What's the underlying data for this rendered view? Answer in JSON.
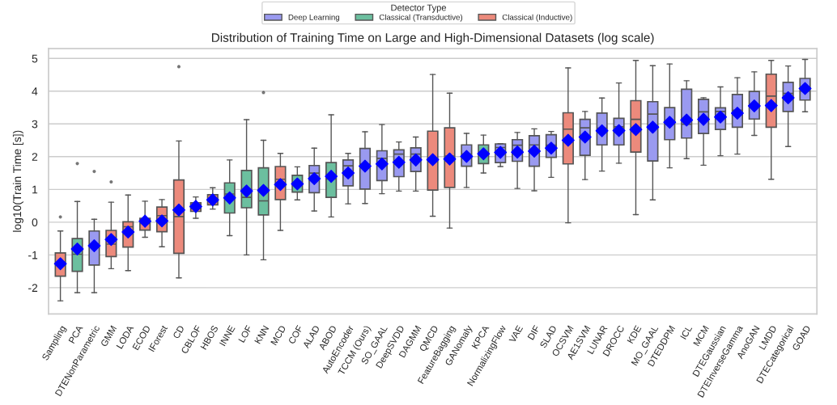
{
  "chart_data": {
    "type": "box",
    "title": "Distribution of Training Time on Large and High-Dimensional Datasets (log scale)",
    "ylabel": "log10(Train Time [s])",
    "legend_title": "Detector Type",
    "legend": "top",
    "grid": "y",
    "ylim": [
      -2.8,
      5.3
    ],
    "yticks": [
      -2,
      -1,
      0,
      1,
      2,
      3,
      4,
      5
    ],
    "categories": [
      "Sampling",
      "PCA",
      "DTENonParametric",
      "GMM",
      "LODA",
      "ECOD",
      "IForest",
      "CD",
      "CBLOF",
      "HBOS",
      "INNE",
      "LOF",
      "KNN",
      "MCD",
      "COF",
      "ALAD",
      "ABOD",
      "AutoEncoder",
      "TCCM (Ours)",
      "SO_GAAL",
      "DeepSVDD",
      "DAGMM",
      "QMCD",
      "FeatureBagging",
      "GANomaly",
      "KPCA",
      "NormalizingFlow",
      "VAE",
      "DIF",
      "SLAD",
      "OCSVM",
      "AE1SVM",
      "LUNAR",
      "DROCC",
      "KDE",
      "MO_GAAL",
      "DTEDDPM",
      "ICL",
      "MCM",
      "DTEGaussian",
      "DTEInverseGamma",
      "AnoGAN",
      "LMDD",
      "DTECategorical",
      "GOAD"
    ],
    "series": [
      {
        "name": "Deep Learning",
        "color": "#9a9af0",
        "boxes": [
          null,
          null,
          {
            "low": -2.15,
            "q1": -1.31,
            "median": -0.75,
            "q3": -0.27,
            "high": 0.09,
            "mean": -0.72,
            "outliers": [
              1.55
            ]
          },
          null,
          null,
          null,
          null,
          null,
          null,
          null,
          null,
          null,
          null,
          null,
          null,
          {
            "low": 0.34,
            "q1": 0.9,
            "median": 1.5,
            "q3": 1.73,
            "high": 2.26,
            "mean": 1.33
          },
          null,
          {
            "low": 0.56,
            "q1": 1.11,
            "median": 1.72,
            "q3": 1.9,
            "high": 2.1,
            "mean": 1.5
          },
          {
            "low": 0.57,
            "q1": 1.01,
            "median": 1.77,
            "q3": 2.25,
            "high": 2.76,
            "mean": 1.71
          },
          {
            "low": 0.87,
            "q1": 1.27,
            "median": 1.95,
            "q3": 2.18,
            "high": 2.98,
            "mean": 1.78
          },
          {
            "low": 0.95,
            "q1": 1.39,
            "median": 2.08,
            "q3": 2.21,
            "high": 2.45,
            "mean": 1.83
          },
          {
            "low": 0.95,
            "q1": 1.55,
            "median": 2.08,
            "q3": 2.27,
            "high": 2.6,
            "mean": 1.9
          },
          null,
          null,
          {
            "low": 1.06,
            "q1": 1.71,
            "median": 2.08,
            "q3": 2.36,
            "high": 2.71,
            "mean": 2.01
          },
          null,
          {
            "low": 1.7,
            "q1": 1.82,
            "median": 2.28,
            "q3": 2.39,
            "high": 2.4,
            "mean": 2.13
          },
          {
            "low": 1.03,
            "q1": 1.86,
            "median": 2.35,
            "q3": 2.52,
            "high": 2.74,
            "mean": 2.14
          },
          {
            "low": 0.96,
            "q1": 1.71,
            "median": 2.36,
            "q3": 2.64,
            "high": 2.85,
            "mean": 2.17
          },
          {
            "low": 1.37,
            "q1": 1.98,
            "median": 2.35,
            "q3": 2.67,
            "high": 2.77,
            "mean": 2.26
          },
          null,
          {
            "low": 1.3,
            "q1": 2.04,
            "median": 2.88,
            "q3": 3.14,
            "high": 3.38,
            "mean": 2.6
          },
          {
            "low": 1.56,
            "q1": 2.36,
            "median": 2.87,
            "q3": 3.33,
            "high": 3.79,
            "mean": 2.79
          },
          {
            "low": 1.8,
            "q1": 2.36,
            "median": 2.91,
            "q3": 3.17,
            "high": 4.25,
            "mean": 2.8
          },
          null,
          {
            "low": 0.68,
            "q1": 1.87,
            "median": 3.3,
            "q3": 3.68,
            "high": 4.78,
            "mean": 2.9
          },
          {
            "low": 1.66,
            "q1": 2.52,
            "median": 3.0,
            "q3": 3.5,
            "high": 4.83,
            "mean": 3.05
          },
          {
            "low": 1.94,
            "q1": 2.57,
            "median": 2.99,
            "q3": 4.06,
            "high": 4.32,
            "mean": 3.12
          },
          {
            "low": 1.74,
            "q1": 2.71,
            "median": 3.37,
            "q3": 3.75,
            "high": 3.8,
            "mean": 3.14
          },
          {
            "low": 2.03,
            "q1": 2.83,
            "median": 3.38,
            "q3": 3.49,
            "high": 4.13,
            "mean": 3.21
          },
          {
            "low": 2.08,
            "q1": 2.9,
            "median": 3.42,
            "q3": 3.9,
            "high": 4.41,
            "mean": 3.33
          },
          {
            "low": 2.65,
            "q1": 3.15,
            "median": 3.55,
            "q3": 3.99,
            "high": 4.59,
            "mean": 3.55
          },
          null,
          {
            "low": 2.31,
            "q1": 3.38,
            "median": 3.93,
            "q3": 4.27,
            "high": 4.77,
            "mean": 3.8
          },
          {
            "low": 3.37,
            "q1": 3.73,
            "median": 4.0,
            "q3": 4.39,
            "high": 4.97,
            "mean": 4.08
          }
        ]
      },
      {
        "name": "Classical (Transductive)",
        "color": "#6cbf9f",
        "boxes": [
          null,
          {
            "low": -2.15,
            "q1": -1.5,
            "median": -0.98,
            "q3": -0.5,
            "high": 0.63,
            "mean": -0.82,
            "outliers": [
              1.79
            ]
          },
          null,
          null,
          null,
          null,
          null,
          null,
          null,
          null,
          {
            "low": -0.41,
            "q1": 0.28,
            "median": 0.86,
            "q3": 1.2,
            "high": 1.9,
            "mean": 0.74
          },
          {
            "low": -1.0,
            "q1": 0.44,
            "median": 0.76,
            "q3": 1.58,
            "high": 3.13,
            "mean": 0.95
          },
          {
            "low": -1.15,
            "q1": 0.22,
            "median": 0.65,
            "q3": 1.66,
            "high": 2.5,
            "mean": 0.97,
            "outliers": [
              3.96
            ]
          },
          null,
          {
            "low": 0.68,
            "q1": 0.92,
            "median": 1.15,
            "q3": 1.43,
            "high": 1.69,
            "mean": 1.17
          },
          null,
          {
            "low": 0.16,
            "q1": 0.76,
            "median": 1.32,
            "q3": 1.82,
            "high": 3.28,
            "mean": 1.4
          },
          null,
          null,
          null,
          null,
          null,
          null,
          null,
          null,
          {
            "low": 1.5,
            "q1": 1.79,
            "median": 2.08,
            "q3": 2.36,
            "high": 2.66,
            "mean": 2.09
          },
          null,
          null,
          null,
          null,
          null,
          null,
          null,
          null,
          null,
          null,
          null,
          null,
          null,
          null,
          null,
          null,
          null,
          null,
          null
        ]
      },
      {
        "name": "Classical (Inductive)",
        "color": "#ec8a7c",
        "boxes": [
          {
            "low": -2.4,
            "q1": -1.65,
            "median": -1.25,
            "q3": -0.94,
            "high": -0.27,
            "mean": -1.27,
            "outliers": [
              0.16
            ]
          },
          null,
          null,
          {
            "low": -1.42,
            "q1": -1.05,
            "median": -0.67,
            "q3": -0.25,
            "high": 0.61,
            "mean": -0.53,
            "outliers": [
              1.23
            ]
          },
          {
            "low": -1.48,
            "q1": -0.76,
            "median": -0.14,
            "q3": 0.01,
            "high": 0.83,
            "mean": -0.3
          },
          {
            "low": -0.46,
            "q1": -0.24,
            "median": -0.04,
            "q3": 0.12,
            "high": 0.64,
            "mean": 0.03
          },
          {
            "low": -0.75,
            "q1": -0.29,
            "median": 0.2,
            "q3": 0.46,
            "high": 0.69,
            "mean": 0.04
          },
          {
            "low": -1.7,
            "q1": -0.95,
            "median": 0.17,
            "q3": 1.29,
            "high": 2.48,
            "mean": 0.37,
            "outliers": [
              4.75
            ]
          },
          {
            "low": 0.12,
            "q1": 0.33,
            "median": 0.41,
            "q3": 0.59,
            "high": 0.77,
            "mean": 0.48
          },
          {
            "low": 0.4,
            "q1": 0.53,
            "median": 0.67,
            "q3": 0.84,
            "high": 1.05,
            "mean": 0.68
          },
          null,
          null,
          null,
          {
            "low": -0.25,
            "q1": 0.69,
            "median": 1.31,
            "q3": 1.7,
            "high": 2.1,
            "mean": 1.15
          },
          null,
          null,
          null,
          null,
          null,
          null,
          null,
          null,
          {
            "low": 0.18,
            "q1": 0.98,
            "median": 1.85,
            "q3": 2.78,
            "high": 4.51,
            "mean": 1.91
          },
          {
            "low": -0.18,
            "q1": 1.06,
            "median": 2.02,
            "q3": 2.88,
            "high": 3.94,
            "mean": 1.93
          },
          null,
          null,
          null,
          null,
          null,
          null,
          {
            "low": -0.02,
            "q1": 1.78,
            "median": 2.84,
            "q3": 3.34,
            "high": 4.71,
            "mean": 2.5
          },
          null,
          null,
          null,
          {
            "low": 0.23,
            "q1": 2.14,
            "median": 3.14,
            "q3": 3.71,
            "high": 4.94,
            "mean": 2.83
          },
          null,
          null,
          null,
          null,
          null,
          null,
          null,
          {
            "low": 1.31,
            "q1": 2.9,
            "median": 3.85,
            "q3": 4.52,
            "high": 4.94,
            "mean": 3.56
          },
          null,
          null
        ]
      }
    ]
  }
}
